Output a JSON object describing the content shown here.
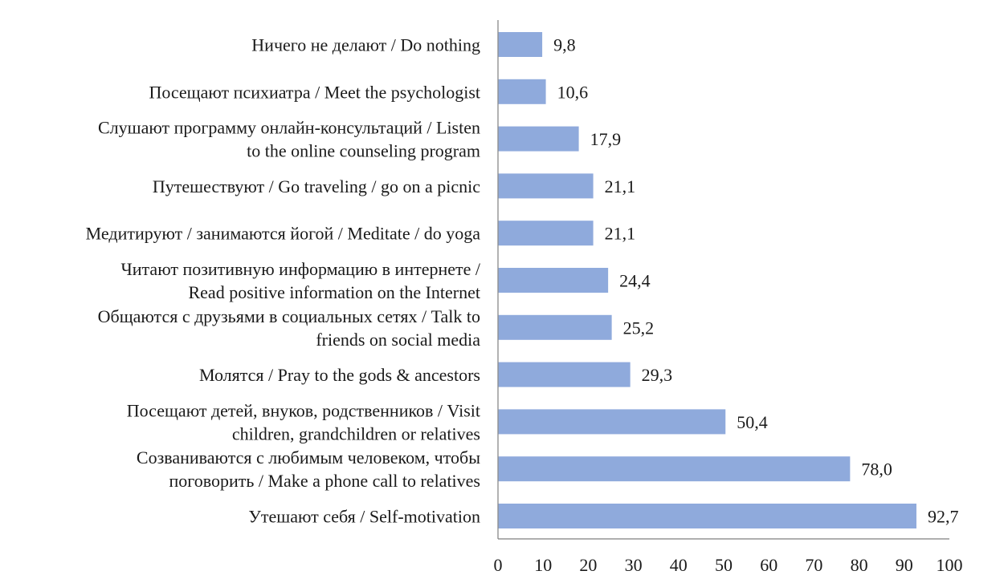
{
  "chart_data": {
    "type": "bar",
    "orientation": "horizontal",
    "title": "",
    "xlabel": "",
    "ylabel": "",
    "xlim": [
      0,
      100
    ],
    "x_ticks": [
      "0",
      "10",
      "20",
      "30",
      "40",
      "50",
      "60",
      "70",
      "80",
      "90",
      "100"
    ],
    "grid": false,
    "bar_color": "#8faadc",
    "categories": [
      [
        "Ничего не делают / Do nothing"
      ],
      [
        "Посещают психиатра / Meet the psychologist"
      ],
      [
        "Слушают программу онлайн-консультаций / Listen",
        "to the online counseling program"
      ],
      [
        "Путешествуют / Go traveling / go on a picnic"
      ],
      [
        "Медитируют / занимаются йогой / Meditate / do yoga"
      ],
      [
        "Читают позитивную информацию в интернете /",
        "Read positive information on the Internet"
      ],
      [
        "Общаются с друзьями в социальных сетях / Talk to",
        "friends on social media"
      ],
      [
        "Молятся / Pray to the gods & ancestors"
      ],
      [
        "Посещают детей, внуков, родственников / Visit",
        "children, grandchildren or relatives"
      ],
      [
        "Созваниваются с любимым человеком, чтобы",
        "поговорить  / Make a phone call to relatives"
      ],
      [
        "Утешают себя / Self-motivation"
      ]
    ],
    "values": [
      9.8,
      10.6,
      17.9,
      21.1,
      21.1,
      24.4,
      25.2,
      29.3,
      50.4,
      78.0,
      92.7
    ],
    "value_labels": [
      "9,8",
      "10,6",
      "17,9",
      "21,1",
      "21,1",
      "24,4",
      "25,2",
      "29,3",
      "50,4",
      "78,0",
      "92,7"
    ]
  }
}
